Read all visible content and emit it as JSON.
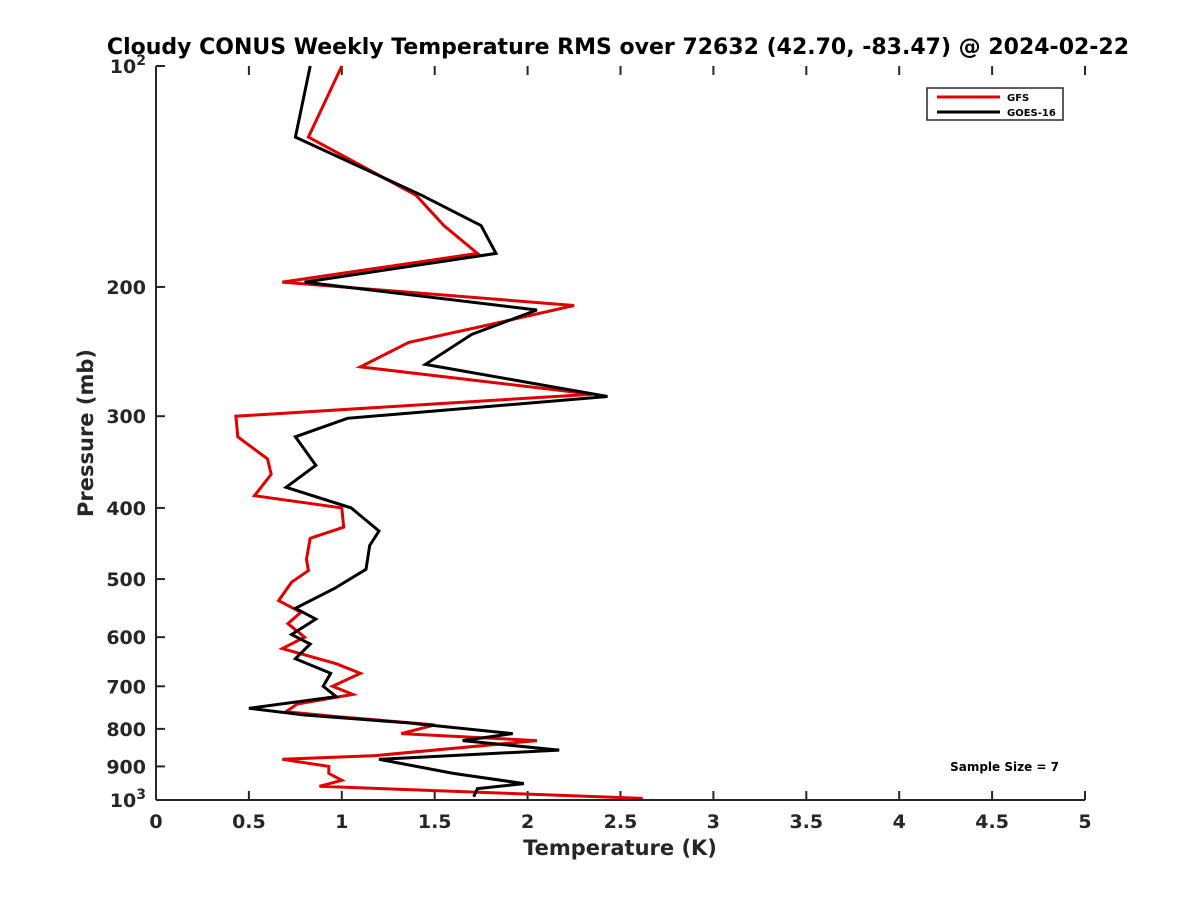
{
  "chart_data": {
    "type": "line",
    "title": "Cloudy CONUS Weekly Temperature RMS over 72632 (42.70, -83.47) @ 2024-02-22",
    "xlabel": "Temperature (K)",
    "ylabel": "Pressure (mb)",
    "xlim": [
      0,
      5
    ],
    "ylim": [
      100,
      1000
    ],
    "y_scale": "log",
    "y_reversed": true,
    "x_ticks": [
      0,
      0.5,
      1,
      1.5,
      2,
      2.5,
      3,
      3.5,
      4,
      4.5,
      5
    ],
    "x_tick_labels": [
      "0",
      "0.5",
      "1",
      "1.5",
      "2",
      "2.5",
      "3",
      "3.5",
      "4",
      "4.5",
      "5"
    ],
    "y_ticks": [
      100,
      200,
      300,
      400,
      500,
      600,
      700,
      800,
      900,
      1000
    ],
    "y_tick_labels": [
      {
        "base": "10",
        "exp": "2"
      },
      {
        "base": "200",
        "exp": ""
      },
      {
        "base": "300",
        "exp": ""
      },
      {
        "base": "400",
        "exp": ""
      },
      {
        "base": "500",
        "exp": ""
      },
      {
        "base": "600",
        "exp": ""
      },
      {
        "base": "700",
        "exp": ""
      },
      {
        "base": "800",
        "exp": ""
      },
      {
        "base": "900",
        "exp": ""
      },
      {
        "base": "10",
        "exp": "3"
      }
    ],
    "grid": false,
    "legend_position": "top-right",
    "annotation": "Sample Size = 7",
    "series": [
      {
        "name": "GFS",
        "color": "#e00000",
        "points": [
          [
            1.0,
            100
          ],
          [
            0.82,
            125
          ],
          [
            1.4,
            150
          ],
          [
            1.55,
            165
          ],
          [
            1.73,
            180
          ],
          [
            0.68,
            197
          ],
          [
            2.25,
            212
          ],
          [
            1.8,
            225
          ],
          [
            1.36,
            238
          ],
          [
            1.1,
            257
          ],
          [
            2.35,
            280
          ],
          [
            0.43,
            300
          ],
          [
            0.44,
            320
          ],
          [
            0.6,
            343
          ],
          [
            0.62,
            360
          ],
          [
            0.53,
            385
          ],
          [
            1.0,
            400
          ],
          [
            1.01,
            425
          ],
          [
            0.83,
            440
          ],
          [
            0.81,
            470
          ],
          [
            0.82,
            487
          ],
          [
            0.73,
            505
          ],
          [
            0.66,
            535
          ],
          [
            0.78,
            555
          ],
          [
            0.71,
            575
          ],
          [
            0.8,
            600
          ],
          [
            0.68,
            622
          ],
          [
            0.97,
            652
          ],
          [
            1.1,
            672
          ],
          [
            0.95,
            700
          ],
          [
            1.06,
            718
          ],
          [
            0.76,
            740
          ],
          [
            0.7,
            758
          ],
          [
            0.98,
            770
          ],
          [
            1.5,
            790
          ],
          [
            1.32,
            812
          ],
          [
            2.05,
            830
          ],
          [
            1.18,
            870
          ],
          [
            0.68,
            880
          ],
          [
            0.93,
            900
          ],
          [
            0.93,
            920
          ],
          [
            1.0,
            940
          ],
          [
            0.88,
            958
          ],
          [
            2.62,
            995
          ]
        ]
      },
      {
        "name": "GOES-16",
        "color": "#000000",
        "points": [
          [
            0.83,
            100
          ],
          [
            0.75,
            125
          ],
          [
            1.43,
            150
          ],
          [
            1.75,
            165
          ],
          [
            1.83,
            180
          ],
          [
            0.8,
            197
          ],
          [
            2.05,
            215
          ],
          [
            1.7,
            232
          ],
          [
            1.45,
            255
          ],
          [
            2.43,
            282
          ],
          [
            1.03,
            302
          ],
          [
            0.75,
            320
          ],
          [
            0.86,
            350
          ],
          [
            0.7,
            375
          ],
          [
            1.05,
            400
          ],
          [
            1.2,
            430
          ],
          [
            1.15,
            450
          ],
          [
            1.13,
            485
          ],
          [
            0.96,
            515
          ],
          [
            0.75,
            548
          ],
          [
            0.86,
            567
          ],
          [
            0.73,
            595
          ],
          [
            0.83,
            613
          ],
          [
            0.75,
            642
          ],
          [
            0.94,
            672
          ],
          [
            0.9,
            700
          ],
          [
            0.97,
            723
          ],
          [
            0.5,
            750
          ],
          [
            0.8,
            766
          ],
          [
            1.35,
            785
          ],
          [
            1.92,
            812
          ],
          [
            1.65,
            830
          ],
          [
            2.17,
            855
          ],
          [
            1.2,
            880
          ],
          [
            1.6,
            920
          ],
          [
            1.98,
            950
          ],
          [
            1.73,
            965
          ],
          [
            1.71,
            990
          ]
        ]
      }
    ]
  }
}
